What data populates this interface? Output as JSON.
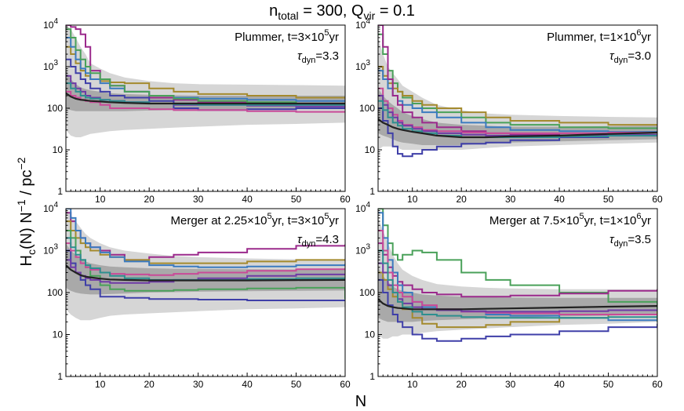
{
  "figure": {
    "title": "n_total = 300, Q_vir = 0.1",
    "xlabel": "N",
    "ylabel": "H_c(N) N^-1 / pc^-2"
  },
  "chart_data": [
    {
      "type": "line",
      "position": "top-left",
      "annotation_line1": "Plummer, t=3×10^5yr",
      "annotation_line2": "τ_dyn=3.3",
      "x": [
        3,
        4,
        5,
        6,
        7,
        8,
        10,
        12,
        15,
        20,
        25,
        30,
        40,
        50,
        60
      ],
      "xlim": [
        3,
        60
      ],
      "ylim": [
        1,
        10000
      ],
      "yscale": "log",
      "xticks": [
        10,
        20,
        30,
        40,
        50,
        60
      ],
      "yticks": [
        "1",
        "10",
        "100",
        "10^3",
        "10^4"
      ],
      "median": [
        230,
        190,
        170,
        160,
        155,
        150,
        145,
        140,
        135,
        130,
        130,
        130,
        130,
        130,
        130
      ],
      "band_inner": {
        "lower": [
          100,
          90,
          85,
          85,
          85,
          85,
          85,
          85,
          85,
          88,
          90,
          90,
          92,
          95,
          95
        ],
        "upper": [
          800,
          500,
          380,
          320,
          290,
          270,
          250,
          230,
          220,
          210,
          205,
          200,
          200,
          200,
          200
        ]
      },
      "band_outer": {
        "lower": [
          30,
          22,
          20,
          20,
          22,
          24,
          26,
          28,
          30,
          32,
          34,
          36,
          40,
          42,
          45
        ],
        "upper": [
          10000,
          8000,
          5000,
          3000,
          2000,
          1200,
          900,
          700,
          550,
          450,
          400,
          380,
          370,
          360,
          350
        ]
      },
      "series": [
        {
          "color": "#9b2a8c",
          "values": [
            10000,
            9000,
            8000,
            6000,
            3000,
            800,
            500,
            350,
            250,
            180,
            160,
            140,
            130,
            130,
            130
          ]
        },
        {
          "color": "#a48a2e",
          "values": [
            3000,
            2000,
            1200,
            800,
            600,
            500,
            450,
            420,
            400,
            300,
            250,
            220,
            200,
            180,
            170
          ]
        },
        {
          "color": "#3b7bbf",
          "values": [
            5000,
            3000,
            1500,
            900,
            700,
            500,
            400,
            300,
            250,
            200,
            180,
            170,
            160,
            150,
            150
          ]
        },
        {
          "color": "#4aa15a",
          "values": [
            8000,
            5000,
            2500,
            1500,
            1000,
            700,
            500,
            350,
            250,
            200,
            170,
            150,
            140,
            130,
            130
          ]
        },
        {
          "color": "#3f3fa8",
          "values": [
            1500,
            1000,
            700,
            500,
            400,
            300,
            250,
            200,
            180,
            150,
            100,
            90,
            95,
            100,
            110
          ]
        },
        {
          "color": "#6f3aa6",
          "values": [
            600,
            400,
            300,
            250,
            200,
            180,
            160,
            150,
            140,
            130,
            120,
            120,
            115,
            110,
            105
          ]
        },
        {
          "color": "#c94a98",
          "values": [
            250,
            200,
            180,
            160,
            150,
            140,
            120,
            100,
            100,
            95,
            90,
            90,
            85,
            82,
            80
          ]
        },
        {
          "color": "#2e8f8f",
          "values": [
            400,
            300,
            250,
            200,
            180,
            170,
            160,
            150,
            140,
            130,
            125,
            120,
            120,
            120,
            120
          ]
        }
      ]
    },
    {
      "type": "line",
      "position": "top-right",
      "annotation_line1": "Plummer, t=1×10^6yr",
      "annotation_line2": "τ_dyn=3.0",
      "x": [
        3,
        4,
        5,
        6,
        7,
        8,
        10,
        12,
        15,
        20,
        25,
        30,
        40,
        50,
        60
      ],
      "xlim": [
        3,
        60
      ],
      "ylim": [
        1,
        10000
      ],
      "yscale": "log",
      "xticks": [
        10,
        20,
        30,
        40,
        50,
        60
      ],
      "yticks": [
        "1",
        "10",
        "100",
        "10^3",
        "10^4"
      ],
      "median": [
        55,
        45,
        40,
        35,
        32,
        30,
        27,
        25,
        22,
        20,
        20,
        21,
        22,
        24,
        26
      ],
      "band_inner": {
        "lower": [
          25,
          22,
          20,
          18,
          16,
          15,
          14,
          13,
          13,
          13,
          14,
          15,
          16,
          17,
          18
        ],
        "upper": [
          300,
          200,
          150,
          120,
          100,
          80,
          65,
          55,
          45,
          40,
          38,
          36,
          36,
          37,
          38
        ]
      },
      "band_outer": {
        "lower": [
          10,
          12,
          12,
          12,
          11,
          10,
          10,
          10,
          10,
          10,
          11,
          12,
          13,
          14,
          15
        ],
        "upper": [
          5000,
          2000,
          1000,
          700,
          500,
          350,
          250,
          180,
          120,
          90,
          75,
          70,
          65,
          62,
          60
        ]
      },
      "series": [
        {
          "color": "#4aa15a",
          "values": [
            6000,
            2000,
            800,
            400,
            250,
            180,
            130,
            100,
            80,
            60,
            45,
            40,
            35,
            33,
            32
          ]
        },
        {
          "color": "#a48a2e",
          "values": [
            1000,
            600,
            400,
            300,
            250,
            200,
            150,
            120,
            100,
            80,
            60,
            50,
            45,
            40,
            38
          ]
        },
        {
          "color": "#3b7bbf",
          "values": [
            800,
            500,
            300,
            200,
            150,
            120,
            100,
            80,
            60,
            45,
            35,
            30,
            28,
            27,
            26
          ]
        },
        {
          "color": "#9b2a8c",
          "values": [
            10000,
            3000,
            500,
            200,
            120,
            80,
            60,
            45,
            35,
            28,
            25,
            23,
            22,
            22,
            22
          ]
        },
        {
          "color": "#3f3fa8",
          "values": [
            100,
            50,
            25,
            12,
            8,
            7,
            8,
            10,
            12,
            14,
            15,
            17,
            20,
            22,
            24
          ]
        },
        {
          "color": "#c94a98",
          "values": [
            300,
            150,
            100,
            70,
            50,
            40,
            35,
            30,
            28,
            26,
            25,
            25,
            25,
            26,
            27
          ]
        },
        {
          "color": "#6f3aa6",
          "values": [
            200,
            120,
            80,
            60,
            45,
            38,
            32,
            28,
            25,
            23,
            22,
            22,
            22,
            23,
            24
          ]
        },
        {
          "color": "#2e8f8f",
          "values": [
            150,
            90,
            60,
            45,
            38,
            32,
            28,
            25,
            22,
            20,
            20,
            20,
            21,
            22,
            23
          ]
        }
      ]
    },
    {
      "type": "line",
      "position": "bottom-left",
      "annotation_line1": "Merger at 2.25×10^5yr, t=3×10^5yr",
      "annotation_line2": "τ_dyn=4.3",
      "x": [
        3,
        4,
        5,
        6,
        7,
        8,
        10,
        12,
        15,
        20,
        25,
        30,
        40,
        50,
        60
      ],
      "xlim": [
        3,
        60
      ],
      "ylim": [
        1,
        10000
      ],
      "yscale": "log",
      "xticks": [
        10,
        20,
        30,
        40,
        50,
        60
      ],
      "yticks": [
        "1",
        "10",
        "100",
        "10^3",
        "10^4"
      ],
      "median": [
        450,
        350,
        300,
        260,
        240,
        230,
        215,
        205,
        200,
        195,
        195,
        195,
        195,
        198,
        200
      ],
      "band_inner": {
        "lower": [
          130,
          110,
          100,
          95,
          92,
          90,
          90,
          92,
          95,
          100,
          102,
          105,
          108,
          110,
          112
        ],
        "upper": [
          1500,
          1000,
          800,
          650,
          550,
          500,
          450,
          420,
          400,
          380,
          370,
          365,
          360,
          355,
          350
        ]
      },
      "band_outer": {
        "lower": [
          40,
          30,
          25,
          22,
          22,
          22,
          25,
          28,
          30,
          32,
          34,
          36,
          40,
          42,
          45
        ],
        "upper": [
          10000,
          7000,
          5000,
          3500,
          2500,
          2000,
          1500,
          1200,
          1000,
          850,
          750,
          700,
          650,
          620,
          600
        ]
      },
      "series": [
        {
          "color": "#9b2a8c",
          "values": [
            8000,
            5000,
            3000,
            2000,
            1500,
            1200,
            1000,
            800,
            600,
            700,
            800,
            900,
            1100,
            1300,
            1400
          ]
        },
        {
          "color": "#a48a2e",
          "values": [
            5000,
            3000,
            2000,
            1500,
            1200,
            1000,
            800,
            700,
            600,
            500,
            500,
            500,
            550,
            600,
            620
          ]
        },
        {
          "color": "#3b7bbf",
          "values": [
            10000,
            6000,
            3000,
            2000,
            1500,
            1200,
            900,
            700,
            550,
            450,
            420,
            400,
            420,
            450,
            480
          ]
        },
        {
          "color": "#4aa15a",
          "values": [
            3000,
            2000,
            1000,
            600,
            400,
            250,
            150,
            120,
            110,
            110,
            115,
            120,
            125,
            130,
            70
          ]
        },
        {
          "color": "#3f3fa8",
          "values": [
            1000,
            500,
            300,
            200,
            150,
            120,
            80,
            80,
            75,
            70,
            70,
            68,
            65,
            65,
            65
          ]
        },
        {
          "color": "#6f3aa6",
          "values": [
            600,
            400,
            300,
            250,
            220,
            200,
            180,
            170,
            170,
            180,
            200,
            220,
            250,
            270,
            280
          ]
        },
        {
          "color": "#c94a98",
          "values": [
            1500,
            1000,
            700,
            500,
            400,
            350,
            300,
            280,
            270,
            260,
            280,
            300,
            330,
            360,
            380
          ]
        },
        {
          "color": "#2e8f8f",
          "values": [
            2000,
            1200,
            800,
            600,
            450,
            380,
            300,
            250,
            220,
            200,
            200,
            200,
            210,
            220,
            230
          ]
        }
      ]
    },
    {
      "type": "line",
      "position": "bottom-right",
      "annotation_line1": "Merger at 7.5×10^5yr, t=1×10^6yr",
      "annotation_line2": "τ_dyn=3.5",
      "x": [
        3,
        4,
        5,
        6,
        7,
        8,
        10,
        12,
        15,
        20,
        25,
        30,
        40,
        50,
        60
      ],
      "xlim": [
        3,
        60
      ],
      "ylim": [
        1,
        10000
      ],
      "yscale": "log",
      "xticks": [
        10,
        20,
        30,
        40,
        50,
        60
      ],
      "yticks": [
        "1",
        "10",
        "100",
        "10^3",
        "10^4"
      ],
      "median": [
        70,
        55,
        48,
        45,
        43,
        42,
        40,
        40,
        40,
        40,
        41,
        42,
        44,
        46,
        48
      ],
      "band_inner": {
        "lower": [
          25,
          22,
          20,
          20,
          20,
          20,
          20,
          21,
          22,
          23,
          24,
          25,
          27,
          28,
          30
        ],
        "upper": [
          400,
          250,
          180,
          140,
          120,
          110,
          100,
          90,
          85,
          80,
          78,
          76,
          75,
          75,
          75
        ]
      },
      "band_outer": {
        "lower": [
          10,
          8,
          8,
          9,
          9,
          10,
          10,
          11,
          12,
          13,
          14,
          15,
          17,
          18,
          20
        ],
        "upper": [
          6000,
          3000,
          1500,
          800,
          500,
          350,
          250,
          200,
          160,
          140,
          130,
          125,
          120,
          120,
          120
        ]
      },
      "series": [
        {
          "color": "#4aa15a",
          "values": [
            10000,
            4000,
            1500,
            800,
            600,
            800,
            1000,
            900,
            600,
            300,
            200,
            150,
            100,
            60,
            20
          ]
        },
        {
          "color": "#9b2a8c",
          "values": [
            1500,
            800,
            400,
            250,
            180,
            150,
            120,
            100,
            90,
            80,
            80,
            85,
            95,
            110,
            120
          ]
        },
        {
          "color": "#a48a2e",
          "values": [
            300,
            200,
            120,
            80,
            60,
            40,
            25,
            18,
            15,
            15,
            17,
            20,
            25,
            30,
            35
          ]
        },
        {
          "color": "#3b7bbf",
          "values": [
            8000,
            2000,
            600,
            300,
            150,
            100,
            60,
            45,
            40,
            35,
            30,
            28,
            25,
            22,
            22
          ]
        },
        {
          "color": "#3f3fa8",
          "values": [
            200,
            100,
            50,
            30,
            20,
            15,
            10,
            8,
            7,
            8,
            9,
            10,
            12,
            15,
            18
          ]
        },
        {
          "color": "#c94a98",
          "values": [
            3000,
            1000,
            300,
            150,
            100,
            80,
            60,
            50,
            40,
            35,
            33,
            32,
            30,
            30,
            30
          ]
        },
        {
          "color": "#6f3aa6",
          "values": [
            500,
            300,
            150,
            100,
            70,
            55,
            45,
            40,
            38,
            36,
            35,
            35,
            36,
            38,
            40
          ]
        },
        {
          "color": "#2e8f8f",
          "values": [
            1000,
            500,
            200,
            100,
            60,
            45,
            35,
            30,
            28,
            26,
            25,
            25,
            25,
            26,
            27
          ]
        }
      ]
    }
  ]
}
